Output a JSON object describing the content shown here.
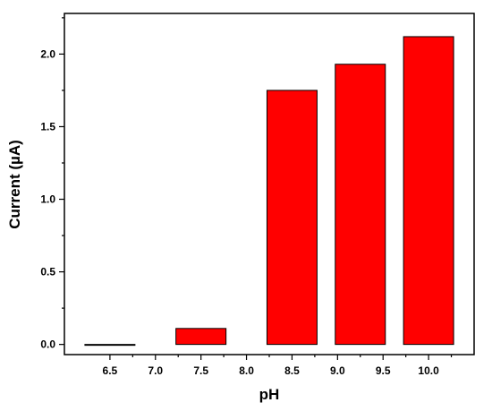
{
  "chart_data": {
    "type": "bar",
    "title": "",
    "xlabel": "pH",
    "ylabel": "Current (µA)",
    "x": [
      6.5,
      7.5,
      8.5,
      9.25,
      10.0
    ],
    "values": [
      0.0,
      0.11,
      1.75,
      1.93,
      2.12
    ],
    "bar_width": 0.55,
    "xlim": [
      6.0,
      10.5
    ],
    "ylim": [
      -0.07,
      2.28
    ],
    "xticks": [
      "6.5",
      "7.0",
      "7.5",
      "8.0",
      "8.5",
      "9.0",
      "9.5",
      "10.0"
    ],
    "yticks": [
      "0.0",
      "0.5",
      "1.0",
      "1.5",
      "2.0"
    ],
    "grid": false,
    "bar_color": "#ff0000",
    "edge_color": "#000000"
  }
}
